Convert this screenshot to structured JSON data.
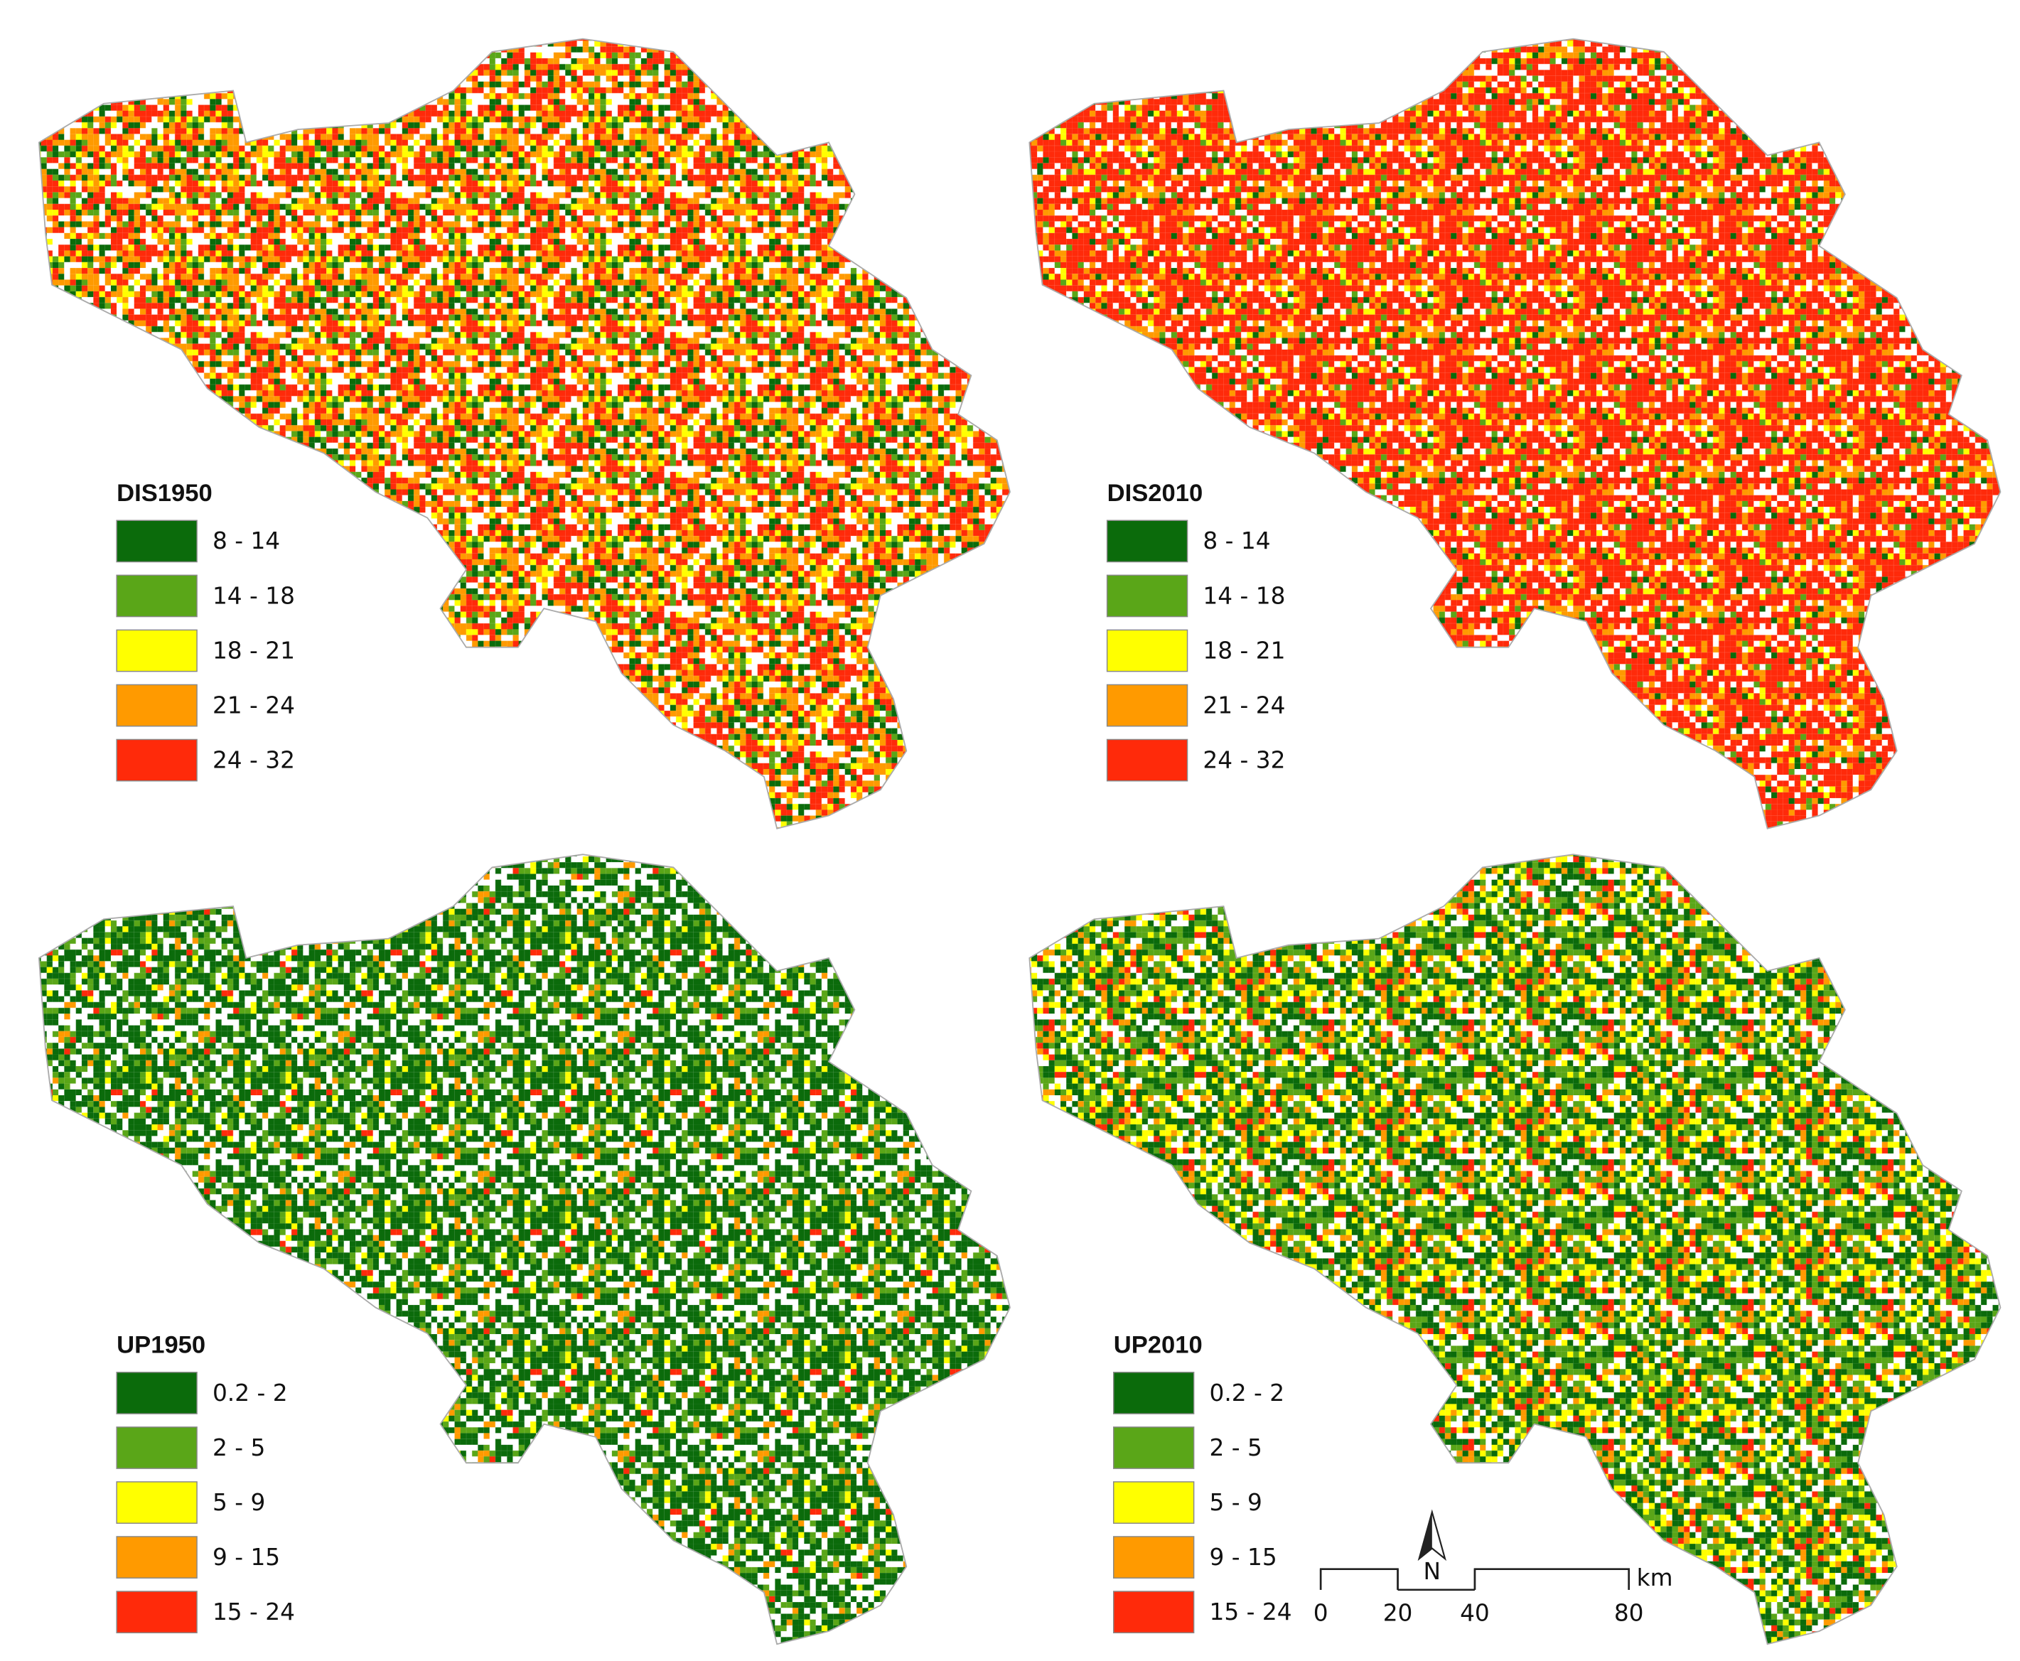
{
  "maps": [
    {
      "title": "DIS1950",
      "legend": [
        {
          "label": "8 - 14",
          "color": "#0b6b0b"
        },
        {
          "label": "14 - 18",
          "color": "#5aa618"
        },
        {
          "label": "18 - 21",
          "color": "#ffff00"
        },
        {
          "label": "21 - 24",
          "color": "#ff9a00"
        },
        {
          "label": "24 - 32",
          "color": "#ff2a0a"
        }
      ]
    },
    {
      "title": "DIS2010",
      "legend": [
        {
          "label": "8 - 14",
          "color": "#0b6b0b"
        },
        {
          "label": "14 - 18",
          "color": "#5aa618"
        },
        {
          "label": "18 - 21",
          "color": "#ffff00"
        },
        {
          "label": "21 - 24",
          "color": "#ff9a00"
        },
        {
          "label": "24 - 32",
          "color": "#ff2a0a"
        }
      ]
    },
    {
      "title": "UP1950",
      "legend": [
        {
          "label": "0.2 - 2",
          "color": "#0b6b0b"
        },
        {
          "label": "2 - 5",
          "color": "#5aa618"
        },
        {
          "label": "5 - 9",
          "color": "#ffff00"
        },
        {
          "label": "9 - 15",
          "color": "#ff9a00"
        },
        {
          "label": "15 - 24",
          "color": "#ff2a0a"
        }
      ]
    },
    {
      "title": "UP2010",
      "legend": [
        {
          "label": "0.2 - 2",
          "color": "#0b6b0b"
        },
        {
          "label": "2 - 5",
          "color": "#5aa618"
        },
        {
          "label": "5 - 9",
          "color": "#ffff00"
        },
        {
          "label": "9 - 15",
          "color": "#ff9a00"
        },
        {
          "label": "15 - 24",
          "color": "#ff2a0a"
        }
      ]
    }
  ],
  "scale_bar": {
    "ticks": [
      0,
      20,
      40,
      80
    ],
    "unit": "km",
    "north": "N"
  }
}
